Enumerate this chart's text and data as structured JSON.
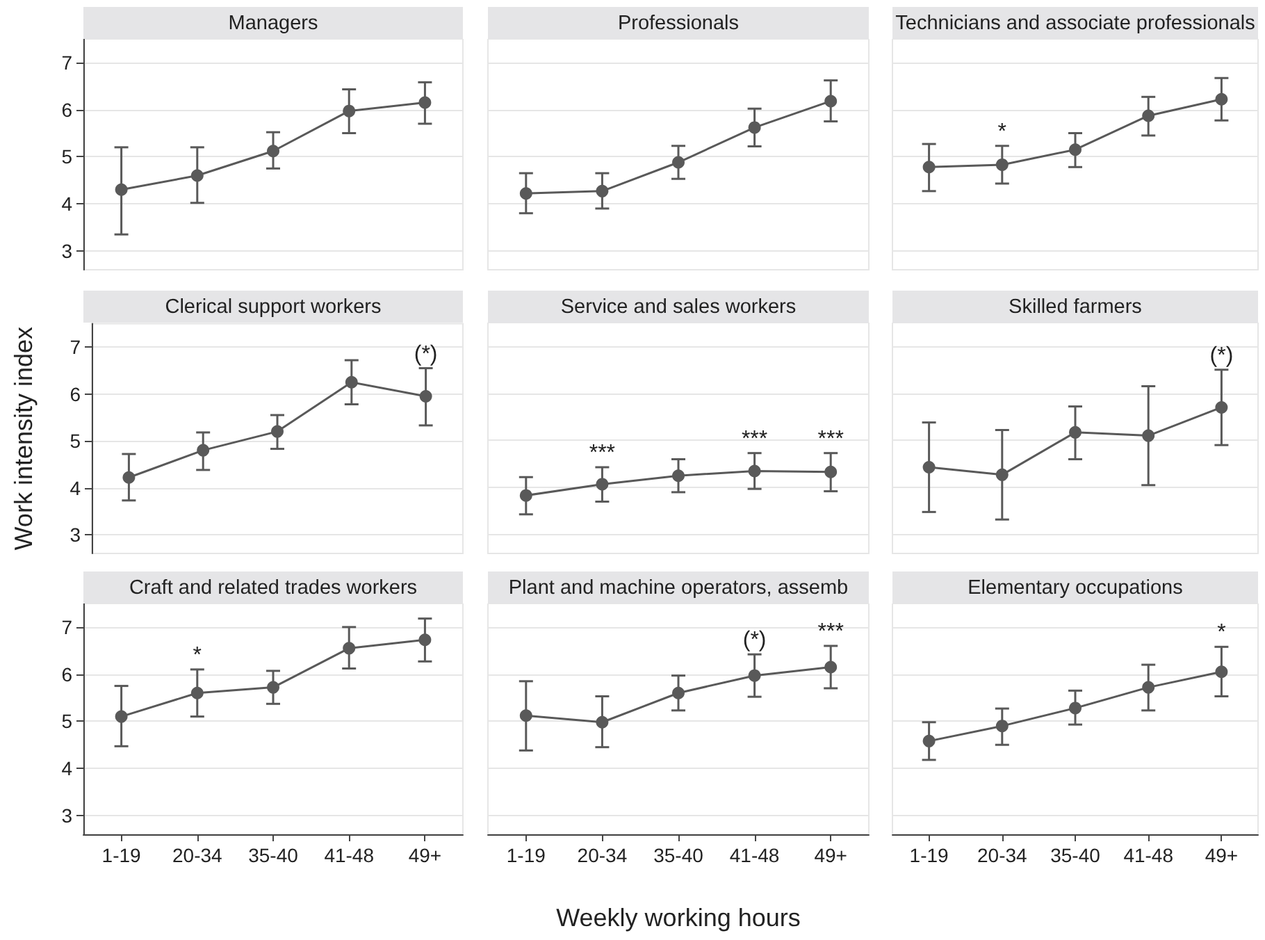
{
  "chart_data": [
    {
      "type": "line",
      "title": "Managers",
      "categories": [
        "1-19",
        "20-34",
        "35-40",
        "41-48",
        "49+"
      ],
      "series": [
        {
          "color": "#595959",
          "values": [
            4.3,
            4.6,
            5.12,
            5.97,
            6.15
          ],
          "errors": [
            [
              3.35,
              5.2
            ],
            [
              4.02,
              5.2
            ],
            [
              4.75,
              5.52
            ],
            [
              5.5,
              6.43
            ],
            [
              5.7,
              6.58
            ]
          ]
        }
      ],
      "ylim": [
        2.6,
        7.5
      ],
      "yticks": [
        3,
        4,
        5,
        6,
        7
      ],
      "grid": "y",
      "marker": "circle",
      "line_style": "solid",
      "tick_labels": "y"
    },
    {
      "type": "line",
      "title": "Professionals",
      "categories": [
        "1-19",
        "20-34",
        "35-40",
        "41-48",
        "49+"
      ],
      "series": [
        {
          "color": "#595959",
          "values": [
            4.22,
            4.27,
            4.88,
            5.62,
            6.18
          ],
          "errors": [
            [
              3.8,
              4.65
            ],
            [
              3.9,
              4.65
            ],
            [
              4.53,
              5.23
            ],
            [
              5.22,
              6.02
            ],
            [
              5.75,
              6.62
            ]
          ]
        }
      ],
      "ylim": [
        2.6,
        7.5
      ],
      "yticks": [
        3,
        4,
        5,
        6,
        7
      ],
      "grid": "y",
      "marker": "circle",
      "line_style": "solid",
      "tick_labels": false
    },
    {
      "type": "line",
      "title": "Technicians and associate professionals",
      "categories": [
        "1-19",
        "20-34",
        "35-40",
        "41-48",
        "49+"
      ],
      "series": [
        {
          "color": "#595959",
          "values": [
            4.78,
            4.83,
            5.15,
            5.87,
            6.22
          ],
          "errors": [
            [
              4.27,
              5.27
            ],
            [
              4.43,
              5.23
            ],
            [
              4.78,
              5.5
            ],
            [
              5.45,
              6.27
            ],
            [
              5.77,
              6.67
            ]
          ]
        }
      ],
      "ylim": [
        2.6,
        7.5
      ],
      "yticks": [
        3,
        4,
        5,
        6,
        7
      ],
      "grid": "y",
      "marker": "circle",
      "line_style": "solid",
      "tick_labels": false,
      "annotations": [
        {
          "text": "*",
          "x": "20-34",
          "y": 5.23
        }
      ]
    },
    {
      "type": "line",
      "title": "Clerical support workers",
      "ylabel": "Work intensity index",
      "categories": [
        "1-19",
        "20-34",
        "35-40",
        "41-48",
        "49+"
      ],
      "series": [
        {
          "color": "#595959",
          "values": [
            4.22,
            4.8,
            5.2,
            6.25,
            5.95
          ],
          "errors": [
            [
              3.73,
              4.72
            ],
            [
              4.38,
              5.18
            ],
            [
              4.83,
              5.55
            ],
            [
              5.78,
              6.72
            ],
            [
              5.33,
              6.55
            ]
          ]
        }
      ],
      "ylim": [
        2.6,
        7.5
      ],
      "yticks": [
        3,
        4,
        5,
        6,
        7
      ],
      "grid": "y",
      "marker": "circle",
      "line_style": "solid",
      "tick_labels": "y",
      "annotations": [
        {
          "text": "(*)",
          "x": "49+",
          "y": 6.55
        }
      ]
    },
    {
      "type": "line",
      "title": "Service and sales workers",
      "categories": [
        "1-19",
        "20-34",
        "35-40",
        "41-48",
        "49+"
      ],
      "series": [
        {
          "color": "#595959",
          "values": [
            3.83,
            4.07,
            4.25,
            4.35,
            4.33
          ],
          "errors": [
            [
              3.43,
              4.22
            ],
            [
              3.7,
              4.43
            ],
            [
              3.9,
              4.6
            ],
            [
              3.97,
              4.73
            ],
            [
              3.92,
              4.73
            ]
          ]
        }
      ],
      "ylim": [
        2.6,
        7.5
      ],
      "yticks": [
        3,
        4,
        5,
        6,
        7
      ],
      "grid": "y",
      "marker": "circle",
      "line_style": "solid",
      "tick_labels": false,
      "annotations": [
        {
          "text": "***",
          "x": "20-34",
          "y": 4.43
        },
        {
          "text": "***",
          "x": "41-48",
          "y": 4.73
        },
        {
          "text": "***",
          "x": "49+",
          "y": 4.73
        }
      ]
    },
    {
      "type": "line",
      "title": "Skilled farmers",
      "categories": [
        "1-19",
        "20-34",
        "35-40",
        "41-48",
        "49+"
      ],
      "series": [
        {
          "color": "#595959",
          "values": [
            4.43,
            4.27,
            5.17,
            5.1,
            5.7
          ],
          "errors": [
            [
              3.48,
              5.38
            ],
            [
              3.32,
              5.22
            ],
            [
              4.6,
              5.72
            ],
            [
              4.05,
              6.15
            ],
            [
              4.9,
              6.5
            ]
          ]
        }
      ],
      "ylim": [
        2.6,
        7.5
      ],
      "yticks": [
        3,
        4,
        5,
        6,
        7
      ],
      "grid": "y",
      "marker": "circle",
      "line_style": "solid",
      "tick_labels": false,
      "annotations": [
        {
          "text": "(*)",
          "x": "49+",
          "y": 6.5
        }
      ]
    },
    {
      "type": "line",
      "title": "Craft and related trades workers",
      "categories": [
        "1-19",
        "20-34",
        "35-40",
        "41-48",
        "49+"
      ],
      "series": [
        {
          "color": "#595959",
          "values": [
            5.1,
            5.6,
            5.72,
            6.55,
            6.73
          ],
          "errors": [
            [
              4.47,
              5.75
            ],
            [
              5.1,
              6.1
            ],
            [
              5.37,
              6.07
            ],
            [
              6.12,
              7.0
            ],
            [
              6.27,
              7.18
            ]
          ]
        }
      ],
      "ylim": [
        2.6,
        7.5
      ],
      "yticks": [
        3,
        4,
        5,
        6,
        7
      ],
      "grid": "y",
      "marker": "circle",
      "line_style": "solid",
      "annotations": [
        {
          "text": "*",
          "x": "20-34",
          "y": 6.1
        }
      ]
    },
    {
      "type": "line",
      "title": "Plant and machine operators, assemb",
      "xlabel": "Weekly working hours",
      "categories": [
        "1-19",
        "20-34",
        "35-40",
        "41-48",
        "49+"
      ],
      "series": [
        {
          "color": "#595959",
          "values": [
            5.12,
            4.98,
            5.6,
            5.97,
            6.15
          ],
          "errors": [
            [
              4.38,
              5.85
            ],
            [
              4.45,
              5.53
            ],
            [
              5.23,
              5.97
            ],
            [
              5.52,
              6.42
            ],
            [
              5.7,
              6.6
            ]
          ]
        }
      ],
      "ylim": [
        2.6,
        7.5
      ],
      "yticks": [
        3,
        4,
        5,
        6,
        7
      ],
      "grid": "y",
      "marker": "circle",
      "line_style": "solid",
      "tick_labels": "x",
      "annotations": [
        {
          "text": "(*)",
          "x": "41-48",
          "y": 6.42
        },
        {
          "text": "***",
          "x": "49+",
          "y": 6.6
        }
      ]
    },
    {
      "type": "line",
      "title": "Elementary occupations",
      "categories": [
        "1-19",
        "20-34",
        "35-40",
        "41-48",
        "49+"
      ],
      "series": [
        {
          "color": "#595959",
          "values": [
            4.58,
            4.9,
            5.28,
            5.72,
            6.05
          ],
          "errors": [
            [
              4.18,
              4.98
            ],
            [
              4.5,
              5.27
            ],
            [
              4.93,
              5.65
            ],
            [
              5.23,
              6.2
            ],
            [
              5.53,
              6.58
            ]
          ]
        }
      ],
      "ylim": [
        2.6,
        7.5
      ],
      "yticks": [
        3,
        4,
        5,
        6,
        7
      ],
      "grid": "y",
      "marker": "circle",
      "line_style": "solid",
      "tick_labels": "x",
      "annotations": [
        {
          "text": "*",
          "x": "49+",
          "y": 6.58
        }
      ]
    }
  ]
}
